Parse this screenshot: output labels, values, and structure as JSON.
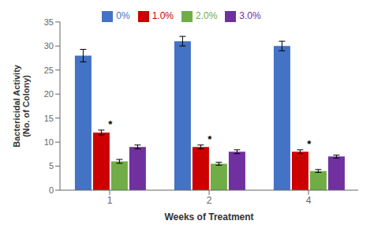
{
  "chart_data": {
    "type": "bar",
    "categories": [
      "1",
      "2",
      "4"
    ],
    "series": [
      {
        "name": "0%",
        "color": "#4472C4",
        "values": [
          28.0,
          31.0,
          30.0
        ],
        "errors": [
          1.3,
          1.0,
          1.0
        ]
      },
      {
        "name": "1.0%",
        "color": "#CC0000",
        "values": [
          12.0,
          9.0,
          8.0
        ],
        "errors": [
          0.5,
          0.4,
          0.4
        ]
      },
      {
        "name": "2.0%",
        "color": "#70AD47",
        "values": [
          6.0,
          5.5,
          4.0
        ],
        "errors": [
          0.4,
          0.3,
          0.3
        ]
      },
      {
        "name": "3.0%",
        "color": "#7030A0",
        "values": [
          9.0,
          8.0,
          7.0
        ],
        "errors": [
          0.4,
          0.4,
          0.3
        ]
      }
    ],
    "xlabel": "Weeks of Treatment",
    "ylabel": "Bactericidal Activity\n(No. of Colony)",
    "ylim": [
      0,
      35
    ],
    "yticks": [
      0,
      5,
      10,
      15,
      20,
      25,
      30,
      35
    ],
    "grid": false,
    "legend": "top",
    "annotations": [
      {
        "text": "*",
        "category": "1",
        "series": "1.0%"
      },
      {
        "text": "*",
        "category": "2",
        "series": "1.0%"
      },
      {
        "text": "*",
        "category": "4",
        "series": "1.0%"
      }
    ]
  }
}
